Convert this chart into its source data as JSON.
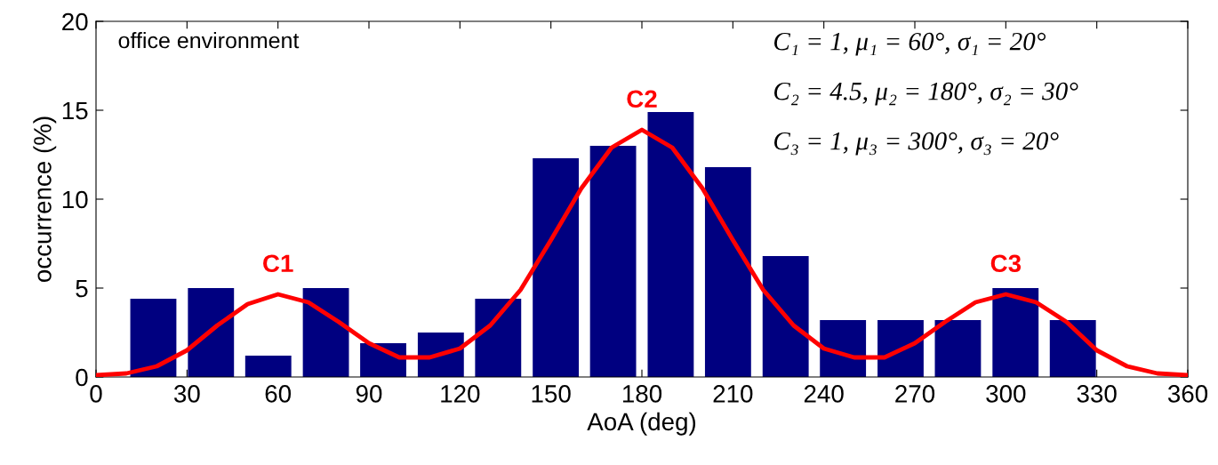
{
  "chart_data": {
    "type": "bar",
    "xlabel": "AoA (deg)",
    "ylabel": "occurrence (%)",
    "xlim": [
      0,
      360
    ],
    "xticks": [
      0,
      30,
      60,
      90,
      120,
      150,
      180,
      210,
      240,
      270,
      300,
      330,
      360
    ],
    "ylim": [
      0,
      20
    ],
    "yticks": [
      0,
      5,
      10,
      15,
      20
    ],
    "grid": false,
    "legend": false,
    "series": [
      {
        "color": "#000080",
        "x": [
          18.9,
          37.9,
          56.8,
          75.8,
          94.7,
          113.7,
          132.6,
          151.6,
          170.5,
          189.5,
          208.4,
          227.4,
          246.3,
          265.3,
          284.2,
          303.2,
          322.1
        ],
        "values": [
          4.4,
          5.0,
          1.2,
          5.0,
          1.9,
          2.5,
          4.4,
          12.3,
          13.0,
          14.9,
          11.8,
          6.8,
          3.2,
          3.2,
          3.2,
          5.0,
          3.2
        ]
      },
      {
        "type": "line",
        "color": "#ff0000",
        "x": [
          0,
          10,
          20,
          30,
          40,
          50,
          60,
          70,
          80,
          90,
          100,
          110,
          120,
          130,
          140,
          150,
          160,
          170,
          180,
          190,
          200,
          210,
          220,
          230,
          240,
          250,
          260,
          270,
          280,
          290,
          300,
          310,
          320,
          330,
          340,
          350,
          360
        ],
        "values": [
          0.1,
          0.2,
          0.6,
          1.5,
          2.9,
          4.1,
          4.65,
          4.2,
          3.1,
          1.9,
          1.1,
          1.1,
          1.6,
          2.9,
          4.9,
          7.7,
          10.6,
          12.9,
          13.9,
          12.9,
          10.6,
          7.7,
          4.9,
          2.9,
          1.6,
          1.1,
          1.1,
          1.9,
          3.1,
          4.2,
          4.65,
          4.2,
          3.1,
          1.5,
          0.6,
          0.2,
          0.1
        ]
      }
    ],
    "annotations": [
      "office environment",
      "C₁ = 1, μ₁ = 60°, σ₁ = 20°",
      "C₂ = 4.5, μ₂ = 180°, σ₂ = 30°",
      "C₃ = 1, μ₃ = 300°, σ₃ = 20°",
      {
        "text": "C1",
        "x": 60,
        "y": 4.65
      },
      {
        "text": "C2",
        "x": 180,
        "y": 13.9
      },
      {
        "text": "C3",
        "x": 300,
        "y": 4.65
      }
    ]
  }
}
